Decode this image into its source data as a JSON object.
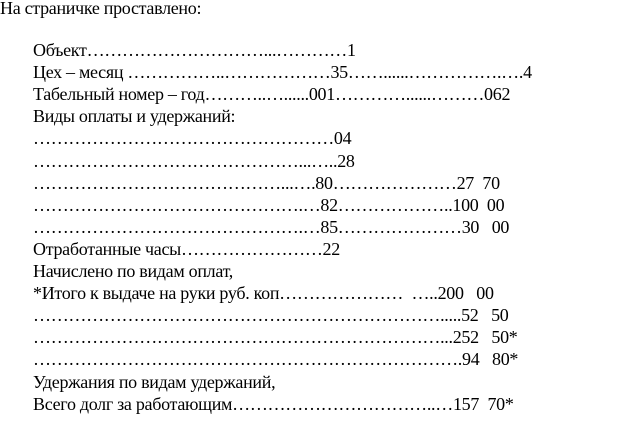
{
  "heading": "На страничке проставлено:",
  "lines": [
    "Объект…………………………...…………1",
    "Цех – месяц ……………..………………35……......…………….….4",
    "Табельный номер – год………..…......001…………......………062",
    "Виды оплаты и удержаний:",
    "……………………………………………04",
    "………………………………………...…..28",
    "……………………………………...….80…………………27  70",
    "……………………………………….…82………………..100  00",
    "……………………………………….…85…………………30   00",
    "Отработанные часы……………………22",
    "Начислено по видам оплат,",
    "*Итого к выдаче на руки руб. коп…………………  …..200   00",
    "…………………………………………………………….....52   50",
    "……………………………………………………………...252   50*",
    "……………………………………………………………….94   80*",
    "Удержания по видам удержаний,",
    "Всего долг за работающим……………………………..…157  70*"
  ]
}
